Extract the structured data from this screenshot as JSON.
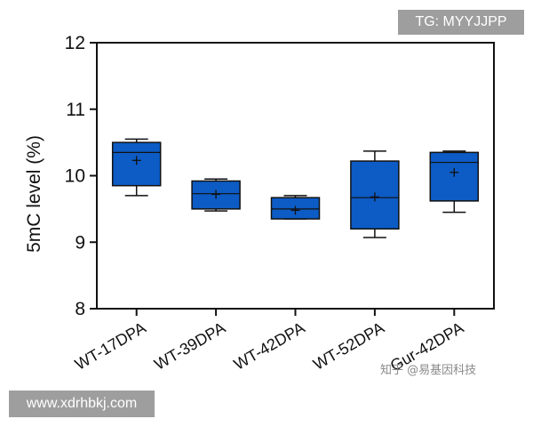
{
  "chart_data": {
    "type": "box",
    "ylabel": "5mC level  (%)",
    "ylim": [
      8,
      12
    ],
    "yticks": [
      "8",
      "9",
      "10",
      "11",
      "12"
    ],
    "box_color": "#0d5bc4",
    "categories": [
      "WT-17DPA",
      "WT-39DPA",
      "WT-42DPA",
      "WT-52DPA",
      "Gur-42DPA"
    ],
    "boxes": [
      {
        "category": "WT-17DPA",
        "min": 9.7,
        "q1": 9.85,
        "median": 10.35,
        "q3": 10.5,
        "max": 10.55,
        "mean": 10.23
      },
      {
        "category": "WT-39DPA",
        "min": 9.47,
        "q1": 9.5,
        "median": 9.73,
        "q3": 9.92,
        "max": 9.95,
        "mean": 9.72
      },
      {
        "category": "WT-42DPA",
        "min": 9.35,
        "q1": 9.35,
        "median": 9.5,
        "q3": 9.67,
        "max": 9.7,
        "mean": 9.48
      },
      {
        "category": "WT-52DPA",
        "min": 9.07,
        "q1": 9.2,
        "median": 9.67,
        "q3": 10.22,
        "max": 10.37,
        "mean": 9.68
      },
      {
        "category": "Gur-42DPA",
        "min": 9.45,
        "q1": 9.62,
        "median": 10.2,
        "q3": 10.35,
        "max": 10.37,
        "mean": 10.05
      }
    ]
  },
  "watermarks": {
    "top_right": "TG: MYYJJPP",
    "bottom_left": "www.xdrhbkj.com",
    "zhihu": "知乎 @易基因科技"
  }
}
